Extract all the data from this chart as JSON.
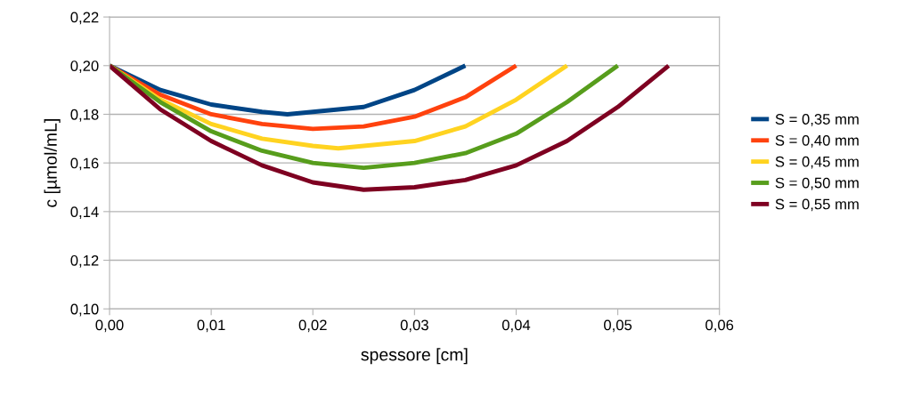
{
  "chart_data": {
    "type": "line",
    "xlabel": "spessore [cm]",
    "ylabel": "c [µmol/mL]",
    "xlim": [
      0,
      0.06
    ],
    "ylim": [
      0.1,
      0.22
    ],
    "xticks": [
      {
        "value": 0,
        "label": "0,00"
      },
      {
        "value": 0.01,
        "label": "0,01"
      },
      {
        "value": 0.02,
        "label": "0,02"
      },
      {
        "value": 0.03,
        "label": "0,03"
      },
      {
        "value": 0.04,
        "label": "0,04"
      },
      {
        "value": 0.05,
        "label": "0,05"
      },
      {
        "value": 0.06,
        "label": "0,06"
      }
    ],
    "yticks": [
      {
        "value": 0.1,
        "label": "0,10"
      },
      {
        "value": 0.12,
        "label": "0,12"
      },
      {
        "value": 0.14,
        "label": "0,14"
      },
      {
        "value": 0.16,
        "label": "0,16"
      },
      {
        "value": 0.18,
        "label": "0,18"
      },
      {
        "value": 0.2,
        "label": "0,20"
      },
      {
        "value": 0.22,
        "label": "0,22"
      }
    ],
    "grid": "y",
    "legend": "right",
    "marker": "none",
    "line_style": "solid",
    "series": [
      {
        "name": "S = 0,35 mm",
        "color": "#004586",
        "x": [
          0,
          0.005,
          0.01,
          0.015,
          0.0175,
          0.02,
          0.025,
          0.03,
          0.035
        ],
        "values": [
          0.2,
          0.19,
          0.184,
          0.181,
          0.18,
          0.181,
          0.183,
          0.19,
          0.2
        ]
      },
      {
        "name": "S = 0,40 mm",
        "color": "#ff420e",
        "x": [
          0,
          0.005,
          0.01,
          0.015,
          0.02,
          0.025,
          0.03,
          0.035,
          0.04
        ],
        "values": [
          0.2,
          0.188,
          0.18,
          0.176,
          0.174,
          0.175,
          0.179,
          0.187,
          0.2
        ]
      },
      {
        "name": "S = 0,45 mm",
        "color": "#ffd320",
        "x": [
          0,
          0.005,
          0.01,
          0.015,
          0.02,
          0.0225,
          0.025,
          0.03,
          0.035,
          0.04,
          0.045
        ],
        "values": [
          0.2,
          0.186,
          0.176,
          0.17,
          0.167,
          0.166,
          0.167,
          0.169,
          0.175,
          0.186,
          0.2
        ]
      },
      {
        "name": "S = 0,50 mm",
        "color": "#579d1c",
        "x": [
          0,
          0.005,
          0.01,
          0.015,
          0.02,
          0.025,
          0.03,
          0.035,
          0.04,
          0.045,
          0.05
        ],
        "values": [
          0.2,
          0.185,
          0.173,
          0.165,
          0.16,
          0.158,
          0.16,
          0.164,
          0.172,
          0.185,
          0.2
        ]
      },
      {
        "name": "S = 0,55 mm",
        "color": "#7e0021",
        "x": [
          0,
          0.005,
          0.01,
          0.015,
          0.02,
          0.025,
          0.03,
          0.035,
          0.04,
          0.045,
          0.05,
          0.055
        ],
        "values": [
          0.2,
          0.182,
          0.169,
          0.159,
          0.152,
          0.149,
          0.15,
          0.153,
          0.159,
          0.169,
          0.183,
          0.2
        ]
      }
    ]
  }
}
